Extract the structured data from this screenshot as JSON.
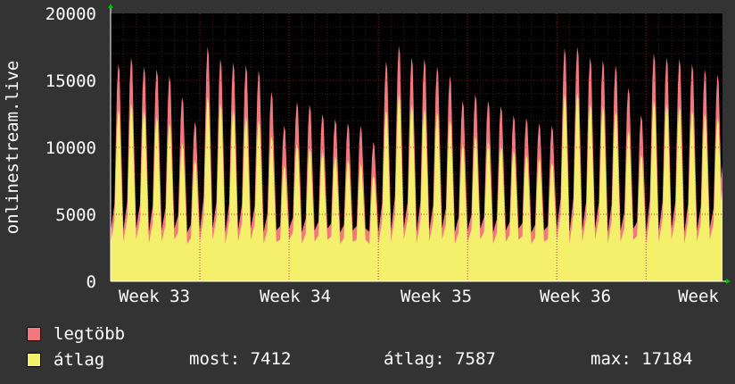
{
  "chart_data": {
    "type": "area",
    "ylabel": "onlinestream.live",
    "ylim": [
      0,
      20000
    ],
    "y_ticks": [
      "20000",
      "15000",
      "10000",
      "5000",
      "0"
    ],
    "x_ticks": [
      "Week 33",
      "Week 34",
      "Week 35",
      "Week 36",
      "Week"
    ],
    "grid": true,
    "series": [
      {
        "name": "legtöbb",
        "color": "#f4777e",
        "daily_peaks": [
          16500,
          17000,
          16300,
          16100,
          15600,
          14000,
          12100,
          17800,
          16900,
          16600,
          16400,
          16000,
          14400,
          11800,
          13600,
          13400,
          12700,
          12300,
          12000,
          11800,
          10600,
          16700,
          17900,
          17000,
          16900,
          16300,
          15600,
          13700,
          14200,
          13700,
          13300,
          12600,
          12400,
          12000,
          11800,
          17700,
          17800,
          17000,
          16800,
          16400,
          14700,
          12600,
          17300,
          17000,
          16900,
          16500,
          16100,
          15700
        ]
      },
      {
        "name": "átlag",
        "color": "#f5f06c",
        "daily_peaks": [
          13000,
          13500,
          13000,
          12500,
          12000,
          10500,
          9200,
          14000,
          13500,
          13000,
          12500,
          12200,
          11000,
          8800,
          10400,
          10100,
          9800,
          9500,
          9200,
          8900,
          8000,
          13000,
          14200,
          13400,
          13100,
          12800,
          12200,
          10400,
          11000,
          10600,
          10300,
          9900,
          9600,
          9300,
          9000,
          14200,
          14300,
          13500,
          13300,
          12900,
          11400,
          9600,
          13700,
          13500,
          13300,
          13000,
          12700,
          12400
        ]
      }
    ]
  },
  "legend": [
    {
      "label": "legtöbb",
      "color": "#f4777e"
    },
    {
      "label": "átlag",
      "color": "#f5f06c"
    }
  ],
  "stats": {
    "most": "most: 7412",
    "atlag": "átlag: 7587",
    "max": "max: 17184"
  }
}
